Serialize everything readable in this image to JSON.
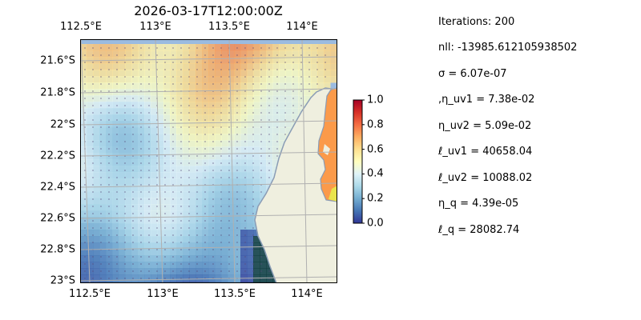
{
  "title": "2026-03-17T12:00:00Z",
  "lon_ticks": [
    "112.5°E",
    "113°E",
    "113.5°E",
    "114°E"
  ],
  "lat_ticks": [
    "21.6°S",
    "21.8°S",
    "22°S",
    "22.2°S",
    "22.4°S",
    "22.6°S",
    "22.8°S",
    "23°S"
  ],
  "colorbar": {
    "ticks": [
      "0.0",
      "0.2",
      "0.4",
      "0.6",
      "0.8",
      "1.0"
    ],
    "colormap": "RdYlBu_r"
  },
  "colors": {
    "ocean": "#9bbbe0",
    "land": "#efefdf",
    "coast": "#8a9cb5",
    "gridlines": "#b0b0b0"
  },
  "stats": [
    "Iterations: 200",
    "nll: -13985.612105938502",
    "σ = 6.07e-07",
    ",η_uv1 = 7.38e-02",
    "η_uv2 = 5.09e-02",
    "ℓ_uv1 = 40658.04",
    "ℓ_uv2 = 10088.02",
    "η_q = 4.39e-05",
    "ℓ_q = 28082.74"
  ]
}
